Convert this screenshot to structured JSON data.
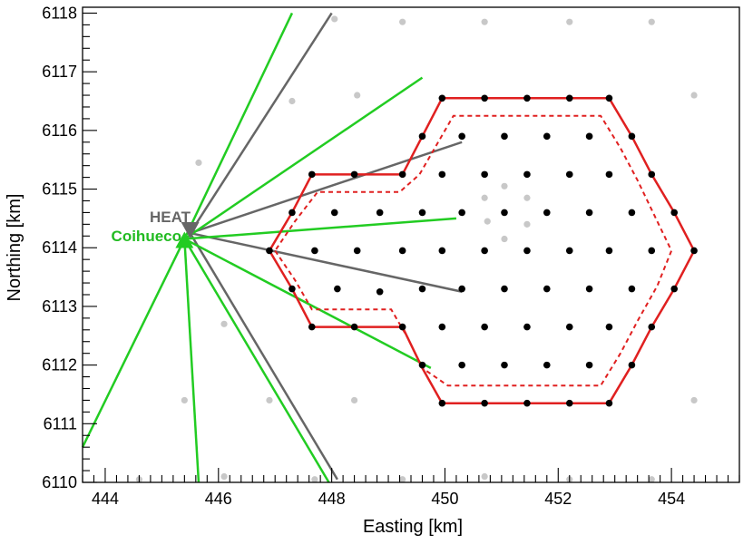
{
  "chart_data": {
    "type": "scatter",
    "xlabel": "Easting [km]",
    "ylabel": "Northing [km]",
    "xlim": [
      443.6,
      455.2
    ],
    "ylim": [
      6110.0,
      6118.1
    ],
    "x_ticks": [
      "444",
      "446",
      "448",
      "450",
      "452",
      "454"
    ],
    "y_ticks": [
      "6110",
      "6111",
      "6112",
      "6113",
      "6114",
      "6115",
      "6116",
      "6117",
      "6118"
    ],
    "annotations": [
      {
        "text": "HEAT",
        "color": "#666666"
      },
      {
        "text": "Coihueco",
        "color": "#22bb22"
      }
    ],
    "stations": {
      "heat": {
        "x": 445.5,
        "y": 6114.25,
        "color": "#666666"
      },
      "coihueco": {
        "x": 445.4,
        "y": 6114.15,
        "color": "#22cc22"
      }
    },
    "fov_lines": {
      "heat": {
        "color": "#666666",
        "endpoints": [
          [
            448.0,
            6118.0
          ],
          [
            450.3,
            6115.8
          ],
          [
            450.3,
            6113.25
          ],
          [
            448.1,
            6110.05
          ]
        ]
      },
      "coihueco": {
        "color": "#22cc22",
        "endpoints": [
          [
            447.3,
            6118.0
          ],
          [
            449.6,
            6116.9
          ],
          [
            450.2,
            6114.5
          ],
          [
            449.75,
            6111.95
          ],
          [
            447.95,
            6110.0
          ],
          [
            445.65,
            6110.0
          ],
          [
            443.6,
            6110.6
          ]
        ]
      }
    },
    "solid_outline": {
      "color": "#e02020",
      "points": [
        [
          446.9,
          6113.95
        ],
        [
          447.3,
          6113.3
        ],
        [
          447.65,
          6112.65
        ],
        [
          449.25,
          6112.65
        ],
        [
          449.6,
          6111.95
        ],
        [
          449.95,
          6111.35
        ],
        [
          452.9,
          6111.35
        ],
        [
          453.3,
          6112.0
        ],
        [
          453.65,
          6112.65
        ],
        [
          454.05,
          6113.3
        ],
        [
          454.4,
          6113.95
        ],
        [
          454.05,
          6114.6
        ],
        [
          453.65,
          6115.25
        ],
        [
          453.3,
          6115.9
        ],
        [
          452.9,
          6116.55
        ],
        [
          449.95,
          6116.55
        ],
        [
          449.6,
          6115.9
        ],
        [
          449.25,
          6115.25
        ],
        [
          447.65,
          6115.25
        ],
        [
          447.3,
          6114.6
        ]
      ]
    },
    "dashed_outline": {
      "color": "#e02020",
      "points": [
        [
          447.0,
          6113.95
        ],
        [
          447.35,
          6113.45
        ],
        [
          447.65,
          6112.95
        ],
        [
          449.05,
          6112.95
        ],
        [
          449.35,
          6112.45
        ],
        [
          449.6,
          6111.95
        ],
        [
          450.05,
          6111.65
        ],
        [
          452.75,
          6111.65
        ],
        [
          453.1,
          6112.2
        ],
        [
          453.4,
          6112.75
        ],
        [
          453.75,
          6113.35
        ],
        [
          454.0,
          6113.95
        ],
        [
          453.7,
          6114.55
        ],
        [
          453.4,
          6115.15
        ],
        [
          453.1,
          6115.7
        ],
        [
          452.75,
          6116.25
        ],
        [
          450.15,
          6116.25
        ],
        [
          449.85,
          6115.75
        ],
        [
          449.55,
          6115.25
        ],
        [
          449.2,
          6114.95
        ],
        [
          447.75,
          6114.95
        ],
        [
          447.35,
          6114.45
        ]
      ]
    },
    "array_stations": {
      "color": "#000000",
      "points": [
        [
          449.95,
          6116.55
        ],
        [
          450.7,
          6116.55
        ],
        [
          451.45,
          6116.55
        ],
        [
          452.2,
          6116.55
        ],
        [
          452.9,
          6116.55
        ],
        [
          449.6,
          6115.9
        ],
        [
          450.3,
          6115.9
        ],
        [
          451.05,
          6115.9
        ],
        [
          451.8,
          6115.9
        ],
        [
          452.55,
          6115.9
        ],
        [
          453.3,
          6115.9
        ],
        [
          447.65,
          6115.25
        ],
        [
          448.4,
          6115.25
        ],
        [
          449.25,
          6115.25
        ],
        [
          449.95,
          6115.25
        ],
        [
          450.7,
          6115.25
        ],
        [
          451.45,
          6115.25
        ],
        [
          452.2,
          6115.25
        ],
        [
          452.9,
          6115.25
        ],
        [
          453.65,
          6115.25
        ],
        [
          447.3,
          6114.6
        ],
        [
          448.05,
          6114.6
        ],
        [
          448.85,
          6114.6
        ],
        [
          449.6,
          6114.6
        ],
        [
          450.3,
          6114.6
        ],
        [
          451.05,
          6114.6
        ],
        [
          451.8,
          6114.6
        ],
        [
          452.55,
          6114.6
        ],
        [
          453.3,
          6114.6
        ],
        [
          454.05,
          6114.6
        ],
        [
          446.9,
          6113.95
        ],
        [
          447.7,
          6113.95
        ],
        [
          448.45,
          6113.95
        ],
        [
          449.25,
          6113.95
        ],
        [
          449.95,
          6113.95
        ],
        [
          450.7,
          6113.95
        ],
        [
          451.45,
          6113.95
        ],
        [
          452.2,
          6113.95
        ],
        [
          452.9,
          6113.95
        ],
        [
          453.65,
          6113.95
        ],
        [
          454.4,
          6113.95
        ],
        [
          447.3,
          6113.3
        ],
        [
          448.1,
          6113.3
        ],
        [
          448.85,
          6113.25
        ],
        [
          449.6,
          6113.3
        ],
        [
          450.3,
          6113.3
        ],
        [
          451.05,
          6113.3
        ],
        [
          451.8,
          6113.3
        ],
        [
          452.55,
          6113.3
        ],
        [
          453.3,
          6113.3
        ],
        [
          454.05,
          6113.3
        ],
        [
          447.65,
          6112.65
        ],
        [
          448.4,
          6112.65
        ],
        [
          449.25,
          6112.65
        ],
        [
          449.95,
          6112.65
        ],
        [
          450.7,
          6112.65
        ],
        [
          451.45,
          6112.65
        ],
        [
          452.2,
          6112.65
        ],
        [
          452.9,
          6112.65
        ],
        [
          453.65,
          6112.65
        ],
        [
          449.6,
          6112.0
        ],
        [
          450.3,
          6112.0
        ],
        [
          451.05,
          6112.0
        ],
        [
          451.8,
          6112.0
        ],
        [
          452.55,
          6112.0
        ],
        [
          453.3,
          6112.0
        ],
        [
          449.95,
          6111.35
        ],
        [
          450.7,
          6111.35
        ],
        [
          451.45,
          6111.35
        ],
        [
          452.2,
          6111.35
        ],
        [
          452.9,
          6111.35
        ]
      ]
    },
    "background_stations": {
      "color": "#c8c8c8",
      "points": [
        [
          448.05,
          6117.9
        ],
        [
          449.25,
          6117.85
        ],
        [
          450.7,
          6117.85
        ],
        [
          452.2,
          6117.85
        ],
        [
          453.65,
          6117.85
        ],
        [
          448.45,
          6116.6
        ],
        [
          447.3,
          6116.5
        ],
        [
          454.4,
          6116.6
        ],
        [
          445.65,
          6115.45
        ],
        [
          450.7,
          6114.85
        ],
        [
          451.05,
          6115.05
        ],
        [
          451.45,
          6114.85
        ],
        [
          450.75,
          6114.45
        ],
        [
          451.45,
          6114.4
        ],
        [
          451.05,
          6114.15
        ],
        [
          446.1,
          6112.7
        ],
        [
          445.4,
          6111.4
        ],
        [
          446.9,
          6111.4
        ],
        [
          448.4,
          6111.4
        ],
        [
          454.4,
          6111.4
        ],
        [
          444.6,
          6110.05
        ],
        [
          446.1,
          6110.1
        ],
        [
          447.7,
          6110.05
        ],
        [
          449.25,
          6110.05
        ],
        [
          450.7,
          6110.1
        ],
        [
          452.2,
          6110.05
        ],
        [
          453.65,
          6110.05
        ]
      ]
    }
  }
}
